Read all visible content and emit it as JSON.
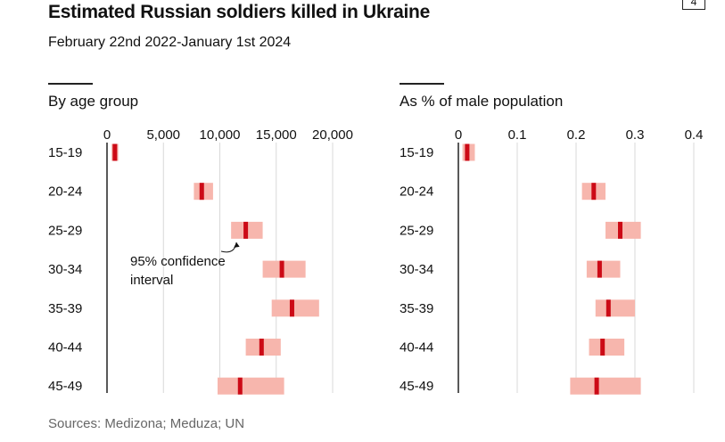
{
  "title": "Estimated Russian soldiers killed in Ukraine",
  "subtitle": "February 22nd 2022-January 1st 2024",
  "badge": "4",
  "source": "Sources: Medizona; Meduza; UN",
  "colors": {
    "interval": "#f7b6ad",
    "estimate": "#cc0a16",
    "grid": "#d9d9d9",
    "axis": "#222222"
  },
  "chart_data": [
    {
      "type": "range",
      "title": "By age group",
      "categories": [
        "15-19",
        "20-24",
        "25-29",
        "30-34",
        "35-39",
        "40-44",
        "45-49"
      ],
      "xlim": [
        0,
        20000
      ],
      "ticks": [
        0,
        5000,
        10000,
        15000,
        20000
      ],
      "tick_labels": [
        "0",
        "5,000",
        "10,000",
        "15,000",
        "20,000"
      ],
      "series": [
        {
          "estimate": [
            700,
            8400,
            12300,
            15500,
            16400,
            13700,
            11800
          ],
          "low": [
            400,
            7700,
            11000,
            13800,
            14600,
            12300,
            9800
          ],
          "high": [
            1000,
            9400,
            13800,
            17600,
            18800,
            15400,
            15700
          ]
        }
      ],
      "annotation": {
        "text": [
          "95% confidence",
          "interval"
        ],
        "category": "25-29"
      }
    },
    {
      "type": "range",
      "title": "As % of male population",
      "categories": [
        "15-19",
        "20-24",
        "25-29",
        "30-34",
        "35-39",
        "40-44",
        "45-49"
      ],
      "xlim": [
        0,
        0.4
      ],
      "ticks": [
        0,
        0.1,
        0.2,
        0.3,
        0.4
      ],
      "tick_labels": [
        "0",
        "0.1",
        "0.2",
        "0.3",
        "0.4"
      ],
      "series": [
        {
          "estimate": [
            0.015,
            0.23,
            0.275,
            0.24,
            0.255,
            0.245,
            0.235
          ],
          "low": [
            0.007,
            0.21,
            0.25,
            0.218,
            0.233,
            0.222,
            0.19
          ],
          "high": [
            0.028,
            0.25,
            0.31,
            0.275,
            0.3,
            0.282,
            0.31
          ]
        }
      ]
    }
  ]
}
